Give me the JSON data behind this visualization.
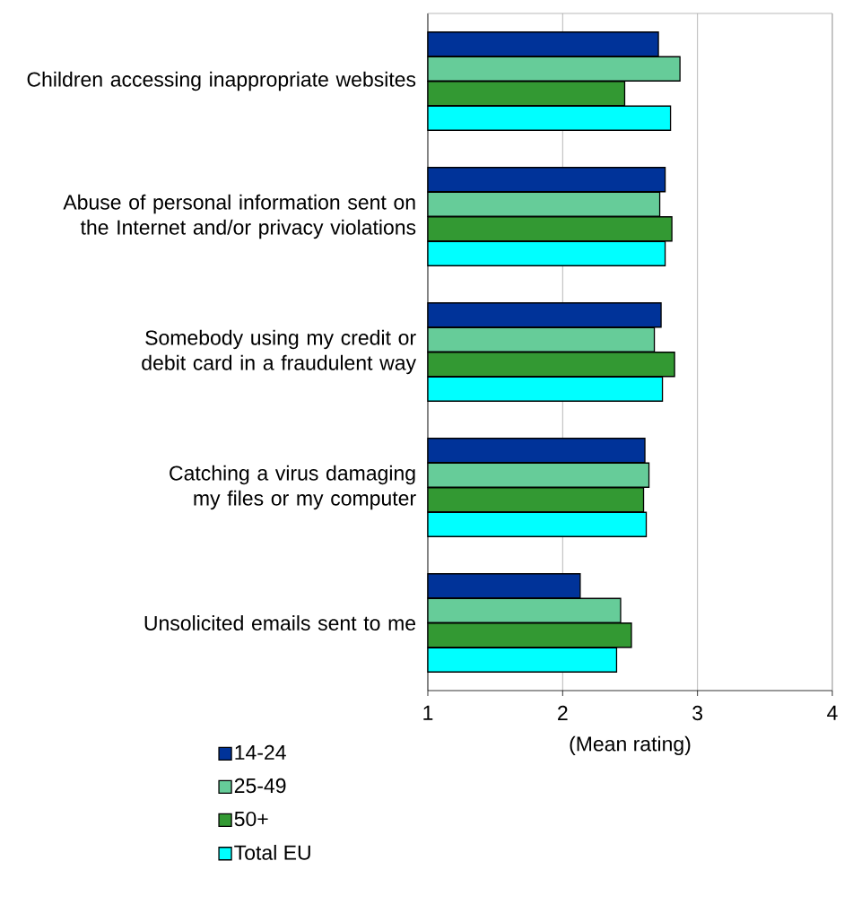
{
  "chart_data": {
    "type": "bar",
    "orientation": "horizontal",
    "xlabel": "(Mean rating)",
    "categories": [
      "Children accessing inappropriate websites",
      "Abuse of personal information sent on the Internet and/or privacy violations",
      "Somebody using my credit or debit card in a fraudulent way",
      "Catching a virus damaging my files or my computer",
      "Unsolicited emails sent to me"
    ],
    "series": [
      {
        "name": "14-24",
        "color": "#003399",
        "values": [
          2.71,
          2.76,
          2.73,
          2.61,
          2.13
        ]
      },
      {
        "name": "25-49",
        "color": "#66cc99",
        "values": [
          2.87,
          2.72,
          2.68,
          2.64,
          2.43
        ]
      },
      {
        "name": "50+",
        "color": "#339933",
        "values": [
          2.46,
          2.81,
          2.83,
          2.6,
          2.51
        ]
      },
      {
        "name": "Total EU",
        "color": "#00ffff",
        "values": [
          2.8,
          2.76,
          2.74,
          2.62,
          2.4
        ]
      }
    ],
    "xlim": [
      1,
      4
    ],
    "xticks": [
      1,
      2,
      3,
      4
    ],
    "grid": "x",
    "legend": "bottom"
  }
}
